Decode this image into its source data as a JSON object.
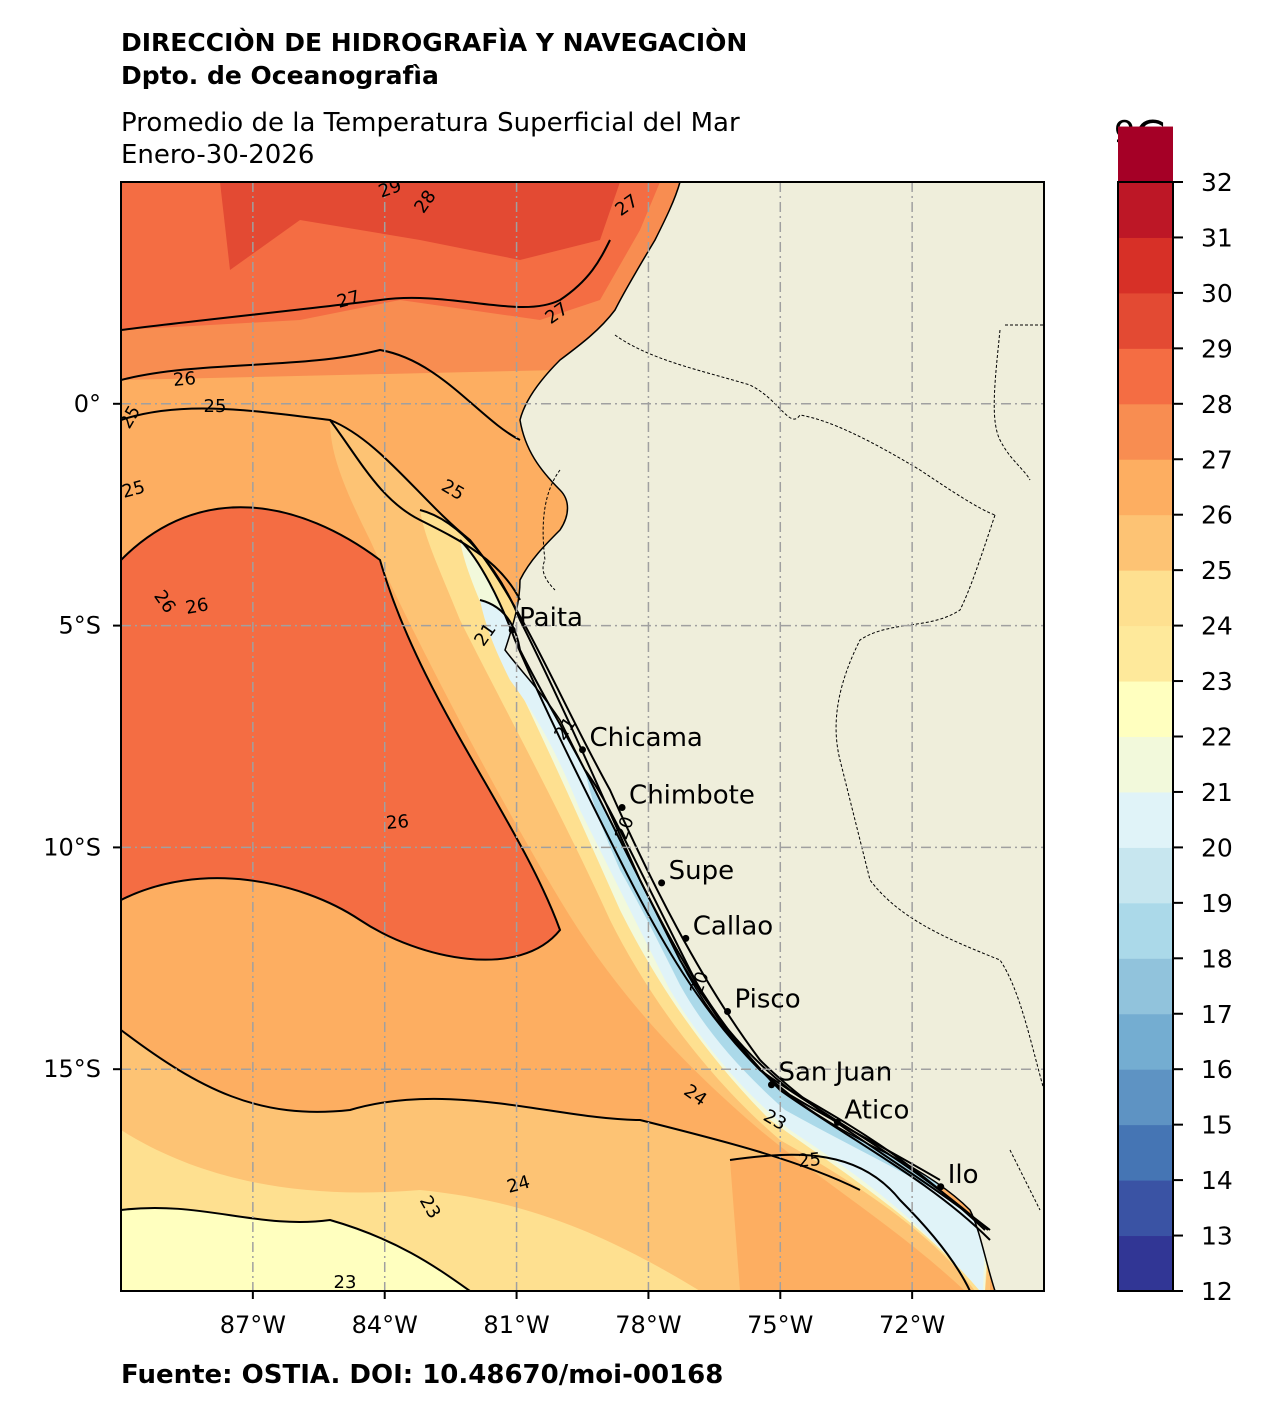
{
  "header": {
    "institution": "DIRECCIÒN DE HIDROGRAFÌA Y NAVEGACIÒN",
    "department": "Dpto. de Oceanografìa",
    "description": "Promedio de la Temperatura Superficial del Mar",
    "date": "Enero-30-2026"
  },
  "footer": {
    "source": "Fuente: OSTIA. DOI: 10.48670/moi-00168"
  },
  "map": {
    "lon_labels": [
      "87°W",
      "84°W",
      "81°W",
      "78°W",
      "75°W",
      "72°W"
    ],
    "lon_values": [
      -87,
      -84,
      -81,
      -78,
      -75,
      -72
    ],
    "lat_labels": [
      "0°",
      "5°S",
      "10°S",
      "15°S"
    ],
    "lat_values": [
      0,
      -5,
      -10,
      -15
    ],
    "extent": {
      "lon_min": -90,
      "lon_max": -69,
      "lat_min": -20,
      "lat_max": 5
    },
    "ports": [
      {
        "name": "Paita",
        "lon": -81.1,
        "lat": -5.1
      },
      {
        "name": "Chicama",
        "lon": -79.5,
        "lat": -7.8
      },
      {
        "name": "Chimbote",
        "lon": -78.6,
        "lat": -9.1
      },
      {
        "name": "Supe",
        "lon": -77.7,
        "lat": -10.8
      },
      {
        "name": "Callao",
        "lon": -77.15,
        "lat": -12.05
      },
      {
        "name": "Pisco",
        "lon": -76.2,
        "lat": -13.7
      },
      {
        "name": "San Juan",
        "lon": -75.2,
        "lat": -15.35
      },
      {
        "name": "Atico",
        "lon": -73.7,
        "lat": -16.2
      },
      {
        "name": "Ilo",
        "lon": -71.35,
        "lat": -17.65
      }
    ],
    "contour_labels": [
      "29",
      "28",
      "27",
      "27",
      "27",
      "26",
      "25",
      "25",
      "25",
      "25",
      "26",
      "26",
      "26",
      "24",
      "23",
      "25",
      "24",
      "23",
      "23",
      "21",
      "21",
      "20",
      "20"
    ],
    "land_color": "#efeedb",
    "grid_color": "#a0a0a0"
  },
  "colorbar": {
    "unit": "ºC",
    "ticks": [
      "32",
      "31",
      "30",
      "29",
      "28",
      "27",
      "26",
      "25",
      "24",
      "23",
      "22",
      "21",
      "20",
      "19",
      "18",
      "17",
      "16",
      "15",
      "14",
      "13",
      "12"
    ],
    "colors_bottom_to_top": [
      "#313695",
      "#3a53a4",
      "#4575b4",
      "#5e93c3",
      "#74add1",
      "#91c3dc",
      "#abd9e9",
      "#c7e6ef",
      "#e0f3f8",
      "#f2f9db",
      "#ffffbf",
      "#fee99b",
      "#fee090",
      "#fdc374",
      "#fdae61",
      "#f88d51",
      "#f46d43",
      "#e34a33",
      "#d73027",
      "#bd1726",
      "#a50026"
    ]
  }
}
